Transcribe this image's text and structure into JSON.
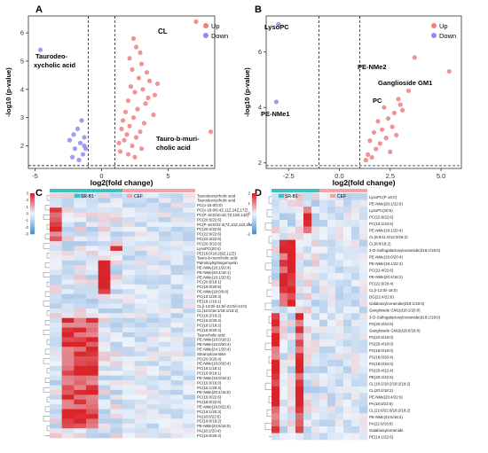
{
  "panels": {
    "A": {
      "label": "A"
    },
    "B": {
      "label": "B"
    },
    "C": {
      "label": "C"
    },
    "D": {
      "label": "D"
    }
  },
  "colors": {
    "up": "#f08080",
    "down": "#8c8cf0",
    "heat_low": "#4f8fd0",
    "heat_mid": "#eef3fb",
    "heat_high": "#d9242a",
    "group_srb": "#3cc0c0",
    "group_cef": "#f2a3a8"
  },
  "chart_data": [
    {
      "type": "scatter",
      "panel": "A",
      "xlabel": "log2(fold change)",
      "ylabel": "-log10 (p-value)",
      "xlim": [
        -5.5,
        8.5
      ],
      "ylim": [
        1.2,
        6.6
      ],
      "xticks": [
        "-5",
        "0",
        "5"
      ],
      "xtick_values": [
        -5,
        0,
        5
      ],
      "yticks": [
        "2",
        "3",
        "4",
        "5",
        "6"
      ],
      "ytick_values": [
        2,
        3,
        4,
        5,
        6
      ],
      "vlines": [
        -1,
        1
      ],
      "hline": 1.3,
      "legend": [
        "Up",
        "Down"
      ],
      "legend_position": "top-right",
      "series": [
        {
          "name": "Up",
          "color_key": "up",
          "points": [
            [
              7.1,
              6.4
            ],
            [
              2.4,
              5.8
            ],
            [
              2.6,
              5.5
            ],
            [
              2.9,
              5.3
            ],
            [
              2.1,
              5.1
            ],
            [
              3.0,
              4.9
            ],
            [
              2.3,
              4.7
            ],
            [
              3.4,
              4.6
            ],
            [
              2.8,
              4.4
            ],
            [
              3.6,
              4.3
            ],
            [
              2.2,
              4.1
            ],
            [
              3.1,
              4.0
            ],
            [
              2.5,
              3.9
            ],
            [
              4.0,
              3.8
            ],
            [
              2.0,
              3.6
            ],
            [
              3.3,
              3.5
            ],
            [
              2.7,
              3.3
            ],
            [
              1.8,
              3.2
            ],
            [
              3.9,
              3.1
            ],
            [
              2.4,
              3.0
            ],
            [
              1.6,
              2.9
            ],
            [
              3.2,
              2.8
            ],
            [
              2.1,
              2.7
            ],
            [
              1.5,
              2.6
            ],
            [
              2.9,
              2.5
            ],
            [
              1.9,
              2.4
            ],
            [
              2.6,
              2.3
            ],
            [
              1.7,
              2.2
            ],
            [
              2.3,
              2.0
            ],
            [
              3.0,
              1.9
            ],
            [
              1.4,
              1.8
            ],
            [
              2.0,
              1.7
            ],
            [
              2.5,
              1.6
            ],
            [
              3.5,
              3.7
            ],
            [
              1.3,
              2.1
            ],
            [
              4.2,
              4.2
            ],
            [
              8.2,
              2.5
            ]
          ]
        },
        {
          "name": "Down",
          "color_key": "down",
          "points": [
            [
              -4.6,
              5.4
            ],
            [
              -1.5,
              2.9
            ],
            [
              -1.8,
              2.6
            ],
            [
              -2.1,
              2.4
            ],
            [
              -1.3,
              2.3
            ],
            [
              -2.4,
              2.2
            ],
            [
              -1.6,
              2.1
            ],
            [
              -1.2,
              1.9
            ],
            [
              -2.0,
              1.9
            ],
            [
              -1.4,
              1.7
            ],
            [
              -2.2,
              1.6
            ],
            [
              -1.7,
              1.5
            ],
            [
              -1.3,
              2.0
            ]
          ]
        }
      ],
      "annotations": [
        {
          "text": "CL"
        },
        {
          "text": "Taurodeo-"
        },
        {
          "text": "xycholic acid"
        },
        {
          "text": "Tauro-b-muri-"
        },
        {
          "text": "cholic acid"
        }
      ]
    },
    {
      "type": "scatter",
      "panel": "B",
      "xlabel": "log2(fold change)",
      "ylabel": "-log10 (p-value)",
      "xlim": [
        -3.6,
        6.0
      ],
      "ylim": [
        1.8,
        7.3
      ],
      "xticks": [
        "-2.5",
        "0.0",
        "2.5",
        "5.0"
      ],
      "xtick_values": [
        -2.5,
        0,
        2.5,
        5.0
      ],
      "yticks": [
        "2",
        "4",
        "6"
      ],
      "ytick_values": [
        2,
        4,
        6
      ],
      "vlines": [
        -1,
        1
      ],
      "hline": 1.9,
      "legend": [
        "Up",
        "Down"
      ],
      "legend_position": "top-right",
      "series": [
        {
          "name": "Up",
          "color_key": "up",
          "points": [
            [
              5.4,
              5.3
            ],
            [
              3.7,
              5.8
            ],
            [
              3.4,
              4.6
            ],
            [
              2.9,
              4.3
            ],
            [
              2.2,
              4.0
            ],
            [
              2.7,
              3.8
            ],
            [
              3.1,
              3.9
            ],
            [
              2.4,
              3.6
            ],
            [
              1.9,
              3.5
            ],
            [
              2.6,
              3.3
            ],
            [
              2.1,
              3.2
            ],
            [
              1.7,
              3.1
            ],
            [
              2.3,
              2.9
            ],
            [
              1.5,
              2.8
            ],
            [
              2.0,
              2.7
            ],
            [
              1.8,
              2.5
            ],
            [
              1.4,
              2.3
            ],
            [
              2.5,
              2.4
            ],
            [
              1.6,
              2.2
            ],
            [
              1.3,
              2.1
            ],
            [
              2.8,
              3.0
            ],
            [
              3.0,
              4.1
            ]
          ]
        },
        {
          "name": "Down",
          "color_key": "down",
          "points": [
            [
              -3.0,
              7.0
            ],
            [
              -3.1,
              4.2
            ]
          ]
        }
      ],
      "annotations": [
        {
          "text": "LysoPC"
        },
        {
          "text": "PE-NMe2"
        },
        {
          "text": "Ganglioside GM1"
        },
        {
          "text": "PC"
        },
        {
          "text": "PE-NMe1"
        }
      ]
    },
    {
      "type": "heatmap",
      "panel": "C",
      "groups": [
        "SR-B1⁻",
        "CEF"
      ],
      "legend_ticks": [
        "3",
        "2",
        "1",
        "0",
        "-1",
        "-2",
        "-3"
      ],
      "columns": 12,
      "rows": [
        "Taurodeoxycholic acid",
        "Taurodeoxycholic acid",
        "PC(o-16:0/0:0)",
        "PC(o-18:0/6:4Z,11Z,14Z,17Z)",
        "PC(P-16:0/10:4Z,7Z,10Z,14Z)",
        "PC(20:5/22:6)",
        "PC(P-16:0/22:4(7Z,10Z,13Z,16Z))",
        "PC(20:4/22:6)",
        "PC(22:6/22:6)",
        "PC(22:4/22:6)",
        "PC(20:3/22:6)",
        "LysoPC(20:4)",
        "PE(16:0/18:2(9Z,12Z))",
        "Tauro-b-muricholic acid",
        "Palmitoylsphingomyelin",
        "PE-NMe(18:1/20:4)",
        "PE-NMe(20:4/18:1)",
        "PE-NMe(18:1/20:5)",
        "PC(20:5/18:1)",
        "PC(16:0/20:5)",
        "PE-NMe(18:0/0:0)",
        "PC(18:1/20:4)",
        "PE(18:1/18:1)",
        "CL(i-13:0/i-21:0/i-23:0/i-24:0)",
        "CL(16:0/18:1/18:1/18:2)",
        "PC(18:2/18:2)",
        "PC(18:2/20:4)",
        "PC(18:1/18:2)",
        "PC(18:0/20:4)",
        "Taurocholic acid",
        "PE-NMe(18:0/18:2)",
        "PE-NMe(16:0/20:4)",
        "PE-NMe(24:1/20:4)",
        "Stearoylcarnitine",
        "PC(20:3/20:4)",
        "PE-NMe(18:0/20:4)",
        "PC(18:1/18:1)",
        "PC(16:0/18:1)",
        "PE-NMe(16:0/18:2)",
        "PC(16:0/16:0)",
        "PC(16:1/20:4)",
        "PE-NMe(20:4/16:0)",
        "PC(16:0/22:6)",
        "PC(18:0/22:6)",
        "PE-NMe(18:0/22:6)",
        "PC(18:1/20:3)",
        "PA(18:0/22:6)",
        "PC(18:0/18:2)",
        "PE-NMe(22:6/16:0)",
        "PA(18:2/20:4)",
        "PC(16:0/20:4)"
      ]
    },
    {
      "type": "heatmap",
      "panel": "D",
      "groups": [
        "SR-B1⁻",
        "CEF"
      ],
      "legend_ticks": [
        "2",
        "1",
        "0",
        "-1",
        "-2"
      ],
      "columns": 12,
      "rows": [
        "LysoPC(P-16:0)",
        "PE-NMe(20:1/22:6)",
        "LysoPC(20:5)",
        "PC(22:6/22:6)",
        "PC(18:1/22:6)",
        "PE-NMe(18:1/20:4)",
        "CL(8:0/11:0/12:0/18:2)",
        "CL(8:0/18:2)",
        "3-O-Sulfogalactosylceramide(d18:1/18:0)",
        "PE-NMe(18:0/20:4)",
        "PE-NMe(18:1/22:4)",
        "PC(22:4/22:6)",
        "PE-NMe(20:4/18:2)",
        "PC(22:6/20:4)",
        "CL(i-13:0/i-18:0)",
        "DG(22:4/22:6)",
        "Galabiosylceramide(d18:1/18:0)",
        "Ganglioside GM1(d18:1/20:0)",
        "3-O-Sulfogalactosylceramide(d18:1/18:0)",
        "PS(20:4/22:6)",
        "Ganglioside GM2(d18:0/18:0)",
        "PS(22:6/18:0)",
        "PS(20:4/18:0)",
        "PS(18:0/18:0)",
        "PS(18:0/20:4)",
        "PS(18:0/20:0)",
        "PS(20:4/22:4)",
        "PE(20:4/22:6)",
        "CL(18:2/18:2/18:2/18:2)",
        "CL(20:4/18:2)",
        "PE-NMe(20:4/22:6)",
        "PA(18:0/22:6)",
        "CL(22:6/22:6/18:2/18:2)",
        "PE-NMe(22:6/18:2)",
        "PA(22:6/18:0)",
        "Galabiosylceramide",
        "PE(14:1/22:6)"
      ]
    }
  ]
}
